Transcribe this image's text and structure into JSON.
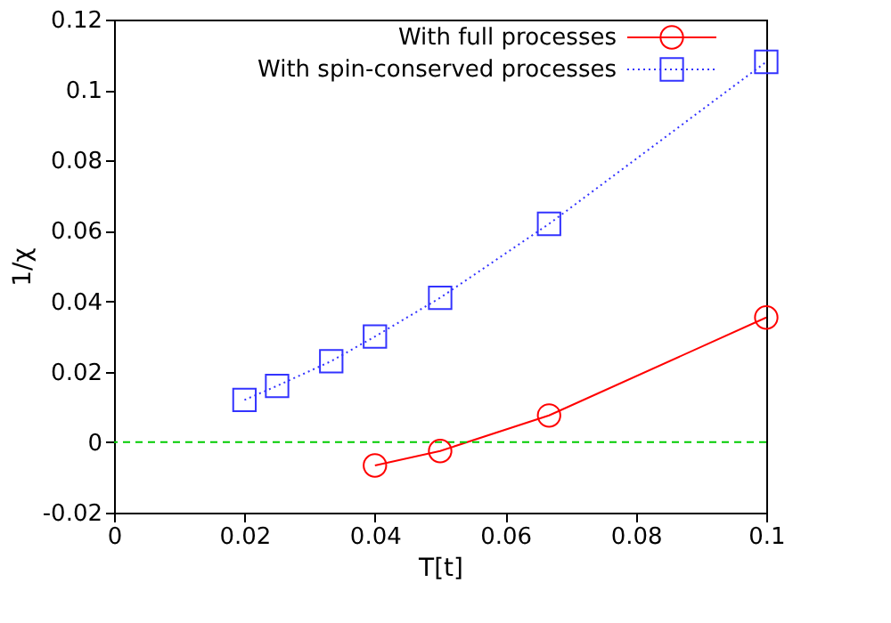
{
  "chart_data": {
    "type": "line",
    "xlabel": "T[t]",
    "ylabel": "1/χ",
    "xlim": [
      0,
      0.1
    ],
    "xticks": [
      {
        "value": 0,
        "label": "0"
      },
      0.02,
      0.04,
      0.06,
      0.08,
      0.1
    ],
    "ylim": [
      -0.02,
      0.12
    ],
    "yticks": [
      -0.02,
      0,
      0.02,
      0.04,
      0.06,
      0.08,
      0.1,
      0.12
    ],
    "grid": false,
    "legend": "top right",
    "series": [
      {
        "name": "With full processes",
        "color": "#ff0000",
        "marker": "circle",
        "line_style": "solid",
        "x": [
          0.04,
          0.05,
          0.0667,
          0.1
        ],
        "values": [
          -0.0066,
          -0.0025,
          0.0076,
          0.0354
        ]
      },
      {
        "name": "With spin-conserved processes",
        "color": "#3333ff",
        "marker": "square",
        "line_style": "dotted",
        "x": [
          0.02,
          0.025,
          0.0333,
          0.04,
          0.05,
          0.0667,
          0.1
        ],
        "values": [
          0.012,
          0.016,
          0.023,
          0.03,
          0.041,
          0.062,
          0.108
        ]
      }
    ],
    "ref_lines": [
      {
        "axis": "y",
        "value": 0,
        "color": "#00cc00",
        "line_style": "dashed"
      }
    ]
  }
}
